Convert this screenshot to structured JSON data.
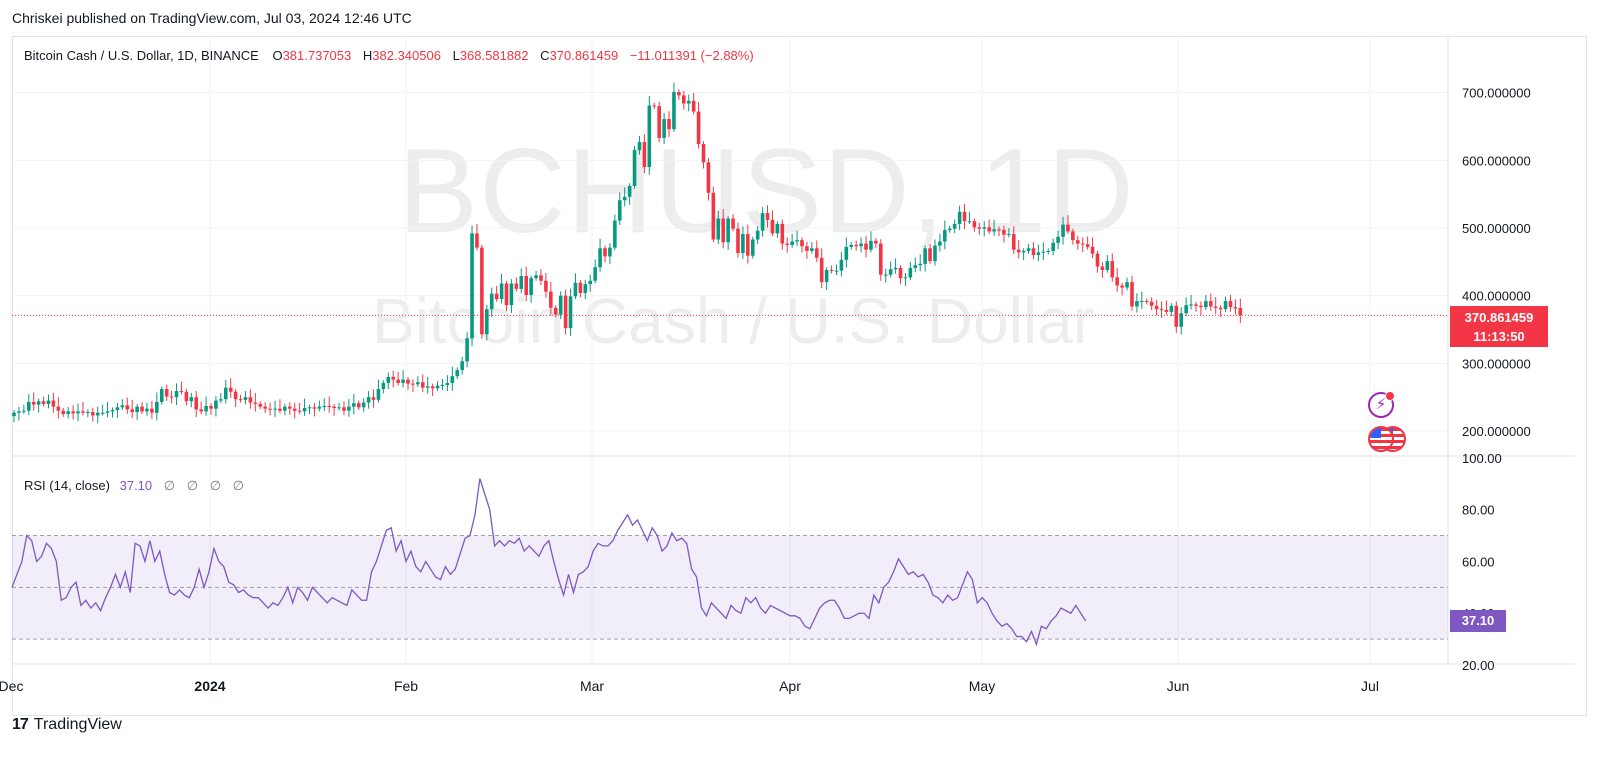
{
  "published": "Chriskei published on TradingView.com, Jul 03, 2024 12:46 UTC",
  "legend": {
    "symbol": "Bitcoin Cash / U.S. Dollar, 1D, BINANCE",
    "o_label": "O",
    "o_value": "381.737053",
    "h_label": "H",
    "h_value": "382.340506",
    "l_label": "L",
    "l_value": "368.581882",
    "c_label": "C",
    "c_value": "370.861459",
    "change": "−11.011391 (−2.88%)"
  },
  "watermark": {
    "ticker": "BCHUSD, 1D",
    "name": "Bitcoin Cash / U.S. Dollar"
  },
  "price_tag": {
    "price": "370.861459",
    "countdown": "11:13:50"
  },
  "rsi_legend": {
    "name": "RSI (14, close)",
    "value": "37.10",
    "na": [
      "∅",
      "∅",
      "∅",
      "∅"
    ]
  },
  "rsi_tag": "37.10",
  "branding": {
    "logo_mark": "17",
    "logo_text": "TradingView"
  },
  "icons": {
    "flash": "lightning-icon",
    "flag": "us-flag-icon"
  },
  "colors": {
    "up": "#089981",
    "down": "#f23645",
    "rsi": "#7e57c2",
    "rsi_band": "#7e57c2"
  },
  "chart_data": [
    {
      "type": "candlestick",
      "title": "Bitcoin Cash / U.S. Dollar, 1D, BINANCE",
      "x_ticks": [
        "Dec",
        "2024",
        "Feb",
        "Mar",
        "Apr",
        "May",
        "Jun",
        "Jul"
      ],
      "y_ticks": [
        "700.000000",
        "600.000000",
        "500.000000",
        "400.000000",
        "300.000000",
        "200.000000"
      ],
      "ylim": [
        183,
        723
      ],
      "last_price": 370.861459,
      "close": [
        227,
        229,
        230,
        243,
        239,
        244,
        240,
        245,
        236,
        230,
        225,
        229,
        226,
        229,
        227,
        228,
        223,
        227,
        227,
        229,
        231,
        235,
        238,
        232,
        228,
        236,
        229,
        233,
        227,
        243,
        262,
        251,
        250,
        259,
        258,
        244,
        250,
        232,
        229,
        237,
        233,
        245,
        247,
        264,
        258,
        247,
        246,
        250,
        242,
        240,
        236,
        233,
        232,
        233,
        230,
        236,
        233,
        230,
        229,
        234,
        235,
        233,
        236,
        237,
        236,
        234,
        235,
        230,
        236,
        241,
        235,
        242,
        250,
        246,
        262,
        271,
        280,
        276,
        271,
        276,
        270,
        269,
        272,
        264,
        266,
        263,
        267,
        268,
        271,
        281,
        290,
        303,
        337,
        492,
        471,
        343,
        380,
        403,
        395,
        418,
        386,
        418,
        410,
        429,
        401,
        426,
        430,
        422,
        406,
        382,
        372,
        400,
        352,
        399,
        419,
        404,
        417,
        422,
        442,
        470,
        458,
        471,
        511,
        541,
        546,
        562,
        615,
        627,
        590,
        681,
        680,
        633,
        661,
        646,
        701,
        696,
        684,
        688,
        672,
        624,
        597,
        552,
        483,
        514,
        479,
        514,
        499,
        463,
        491,
        459,
        483,
        496,
        522,
        512,
        492,
        506,
        477,
        475,
        480,
        482,
        473,
        466,
        470,
        456,
        420,
        438,
        437,
        437,
        453,
        472,
        475,
        473,
        477,
        468,
        481,
        477,
        431,
        431,
        439,
        441,
        426,
        427,
        441,
        445,
        447,
        470,
        451,
        474,
        480,
        497,
        499,
        506,
        524,
        510,
        510,
        501,
        499,
        501,
        495,
        498,
        497,
        490,
        491,
        468,
        464,
        466,
        470,
        460,
        464,
        465,
        466,
        478,
        487,
        505,
        495,
        482,
        477,
        476,
        472,
        462,
        443,
        438,
        451,
        427,
        415,
        412,
        420,
        384,
        392,
        392,
        391,
        385,
        380,
        379,
        376,
        385,
        354,
        374,
        386,
        387,
        385,
        383,
        392,
        384,
        382,
        380,
        392,
        383,
        381,
        371
      ],
      "open": [
        222,
        227,
        229,
        230,
        243,
        239,
        244,
        240,
        245,
        236,
        230,
        225,
        229,
        226,
        229,
        227,
        228,
        223,
        227,
        227,
        229,
        231,
        235,
        238,
        232,
        228,
        236,
        229,
        233,
        227,
        243,
        262,
        251,
        250,
        259,
        258,
        244,
        250,
        232,
        229,
        237,
        233,
        245,
        247,
        264,
        258,
        247,
        246,
        250,
        242,
        240,
        236,
        233,
        232,
        233,
        230,
        236,
        233,
        230,
        229,
        234,
        235,
        233,
        236,
        237,
        236,
        234,
        235,
        230,
        236,
        241,
        235,
        242,
        250,
        246,
        262,
        271,
        280,
        276,
        271,
        276,
        270,
        269,
        272,
        264,
        266,
        263,
        267,
        268,
        271,
        281,
        290,
        303,
        337,
        492,
        471,
        343,
        380,
        403,
        395,
        418,
        386,
        418,
        410,
        429,
        401,
        426,
        430,
        422,
        406,
        382,
        372,
        400,
        352,
        399,
        419,
        404,
        417,
        422,
        442,
        470,
        458,
        471,
        511,
        541,
        546,
        562,
        615,
        627,
        590,
        681,
        680,
        633,
        661,
        646,
        701,
        696,
        684,
        688,
        672,
        624,
        597,
        552,
        483,
        514,
        479,
        514,
        499,
        463,
        491,
        459,
        483,
        496,
        522,
        512,
        492,
        506,
        477,
        475,
        480,
        482,
        473,
        466,
        470,
        456,
        420,
        438,
        437,
        437,
        453,
        472,
        475,
        473,
        477,
        468,
        481,
        477,
        431,
        431,
        439,
        441,
        426,
        427,
        441,
        445,
        447,
        470,
        451,
        474,
        480,
        497,
        499,
        506,
        524,
        510,
        510,
        501,
        499,
        501,
        495,
        498,
        497,
        490,
        491,
        468,
        464,
        466,
        470,
        460,
        464,
        465,
        466,
        478,
        487,
        505,
        495,
        482,
        477,
        476,
        472,
        462,
        443,
        438,
        451,
        427,
        415,
        412,
        420,
        384,
        392,
        392,
        391,
        385,
        380,
        379,
        376,
        385,
        354,
        374,
        386,
        387,
        385,
        383,
        392,
        384,
        382,
        380,
        392,
        383,
        381.737
      ],
      "rsi": [
        50,
        55,
        60,
        70,
        68,
        60,
        62,
        67,
        65,
        60,
        45,
        46,
        50,
        52,
        43,
        45,
        42,
        44,
        41,
        46,
        50,
        55,
        50,
        56,
        48,
        67,
        66,
        60,
        68,
        60,
        64,
        55,
        48,
        47,
        49,
        47,
        46,
        50,
        57,
        50,
        56,
        65,
        60,
        58,
        52,
        51,
        48,
        49,
        47,
        46,
        46,
        44,
        42,
        44,
        43,
        46,
        50,
        44,
        50,
        48,
        45,
        50,
        48,
        46,
        44,
        46,
        45,
        44,
        43,
        49,
        47,
        45,
        45,
        56,
        60,
        66,
        72,
        73,
        64,
        68,
        60,
        64,
        58,
        56,
        60,
        57,
        54,
        53,
        58,
        55,
        57,
        63,
        69,
        70,
        78,
        92,
        86,
        80,
        66,
        68,
        66,
        68,
        67,
        69,
        64,
        66,
        64,
        62,
        66,
        68,
        60,
        53,
        47,
        55,
        48,
        55,
        56,
        58,
        64,
        67,
        66,
        66,
        68,
        72,
        75,
        78,
        74,
        76,
        72,
        68,
        73,
        70,
        64,
        66,
        71,
        68,
        69,
        67,
        57,
        54,
        42,
        39,
        44,
        42,
        40,
        38,
        43,
        41,
        40,
        46,
        44,
        46,
        42,
        40,
        43,
        42,
        41,
        40,
        39,
        39,
        38,
        35,
        34,
        38,
        42,
        44,
        45,
        45,
        42,
        38,
        38,
        39,
        40,
        40,
        38,
        47,
        44,
        50,
        52,
        56,
        61,
        58,
        55,
        56,
        54,
        55,
        52,
        47,
        46,
        44,
        47,
        45,
        46,
        51,
        56,
        53,
        44,
        46,
        44,
        40,
        37,
        35,
        36,
        34,
        31,
        31,
        29,
        33,
        28,
        35,
        34,
        37,
        39,
        42,
        41,
        40,
        43,
        40,
        37.1
      ],
      "rsi_levels": [
        70,
        50,
        30
      ],
      "rsi_ticks": [
        "100.00",
        "80.00",
        "60.00",
        "40.00",
        "20.00"
      ],
      "rsi_ylim": [
        17,
        101
      ]
    }
  ]
}
